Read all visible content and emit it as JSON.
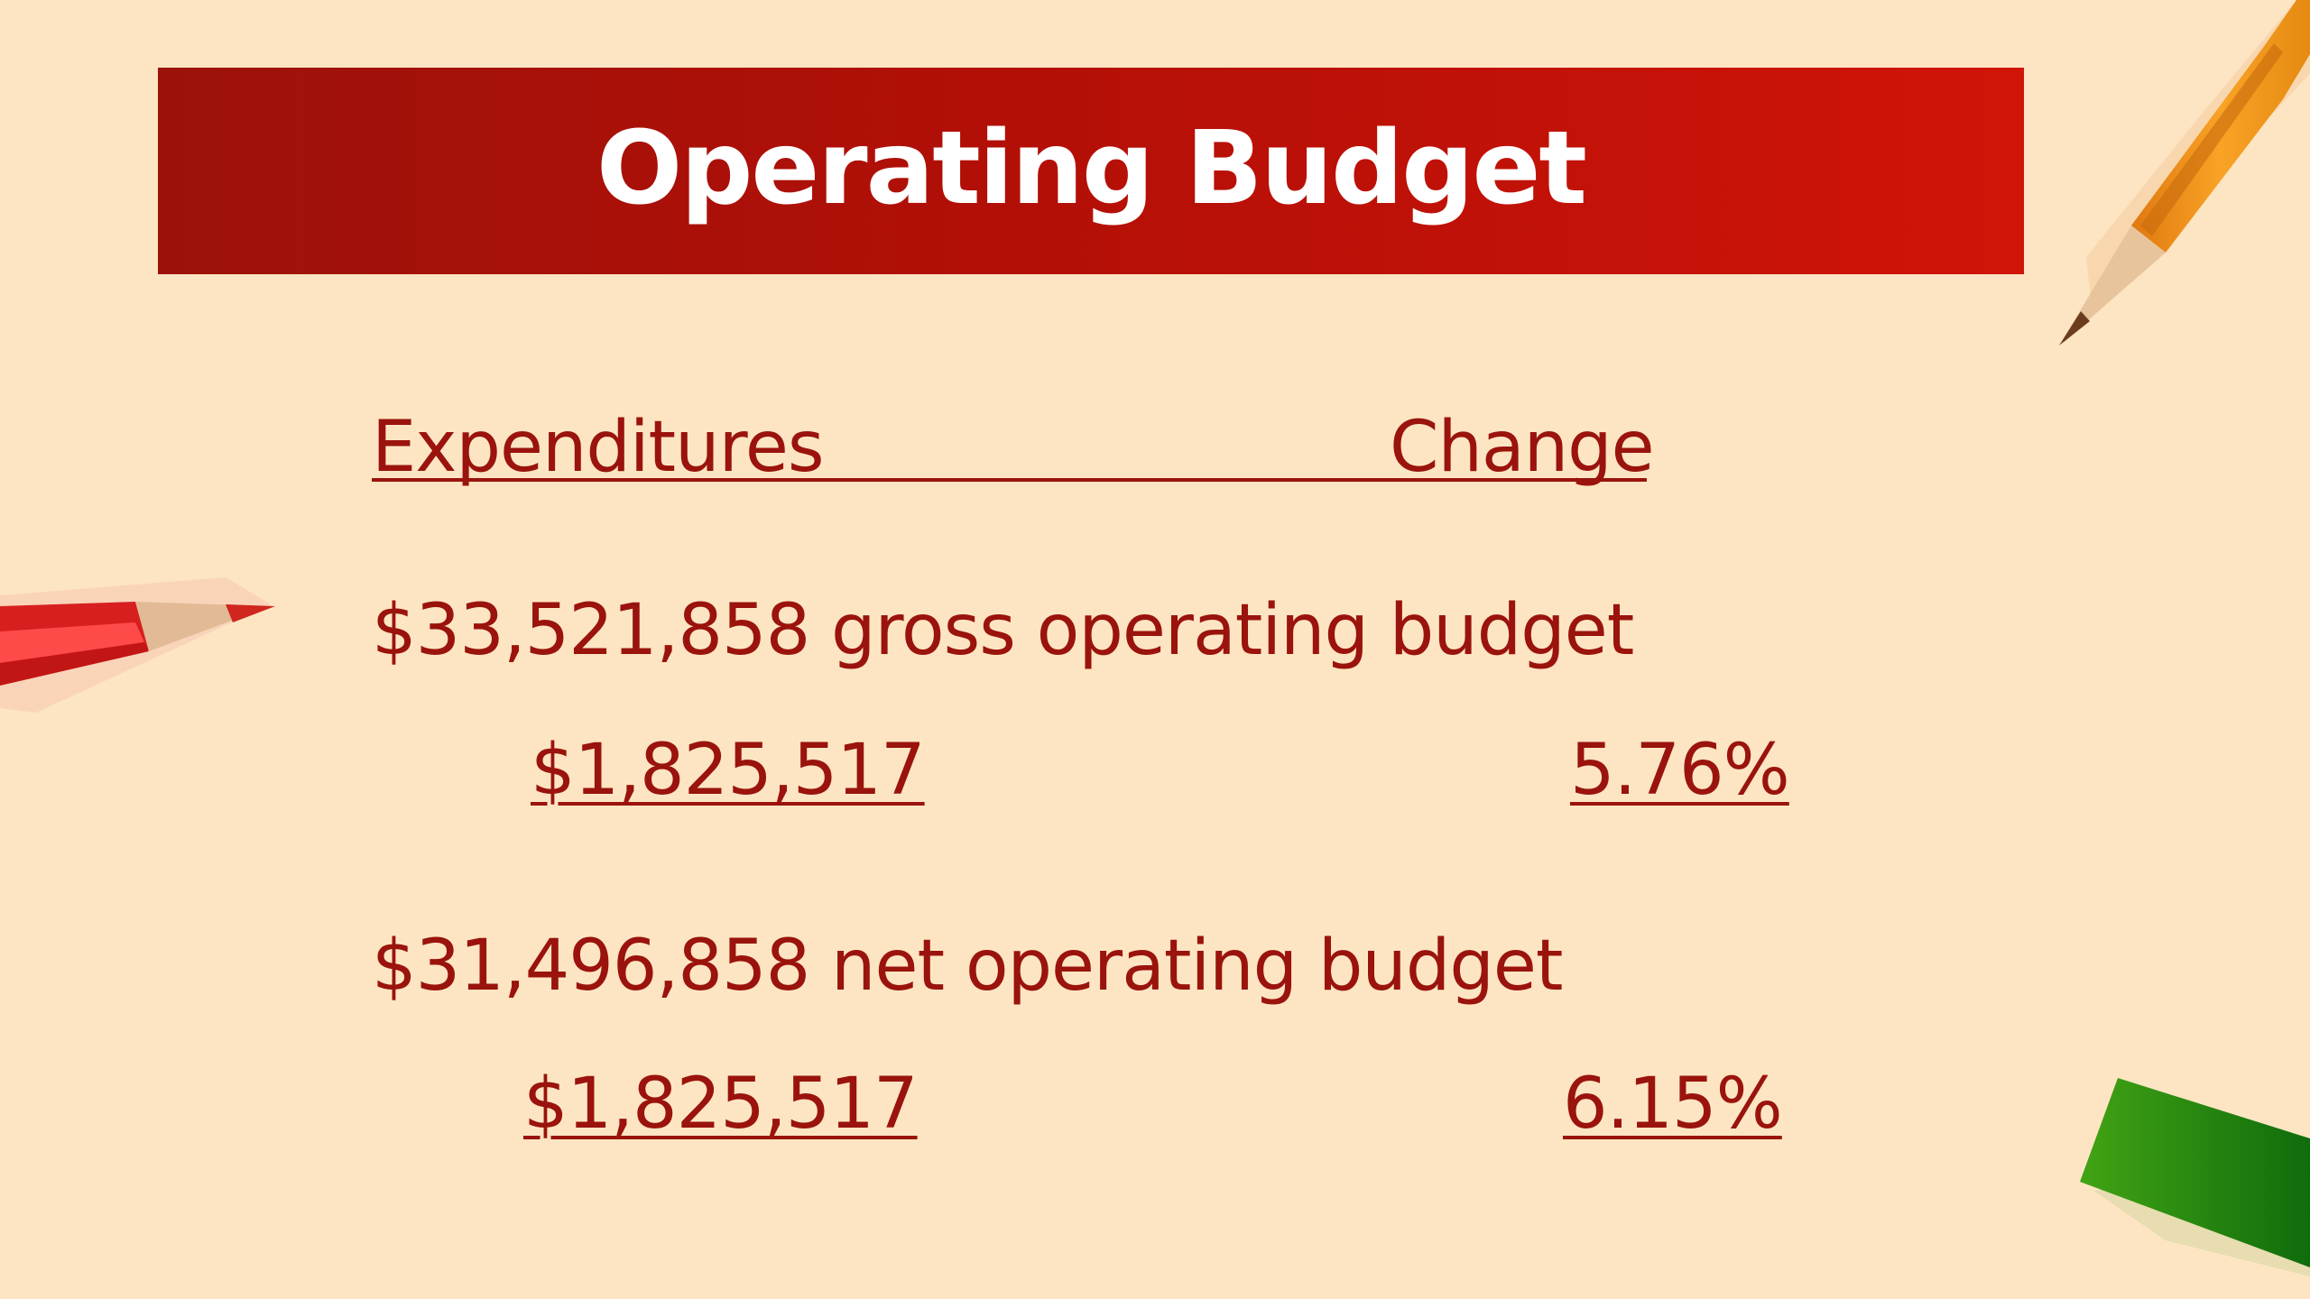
{
  "title": "Operating Budget",
  "table": {
    "headers": {
      "left": "Expenditures",
      "right": "Change"
    },
    "rows": [
      {
        "label": "$33,521,858 gross operating budget",
        "amount": "$1,825,517",
        "change": "5.76%"
      },
      {
        "label": "$31,496,858 net operating budget",
        "amount": "$1,825,517",
        "change": "6.15%"
      }
    ]
  },
  "decorations": {
    "orange_pencil": "pencil-icon",
    "red_pencil": "pencil-icon",
    "green_pencil": "pencil-icon"
  },
  "colors": {
    "background": "#fde5c3",
    "title_bar_start": "#9c120a",
    "title_bar_end": "#d01408",
    "text": "#9a130d",
    "title_text": "#ffffff"
  }
}
